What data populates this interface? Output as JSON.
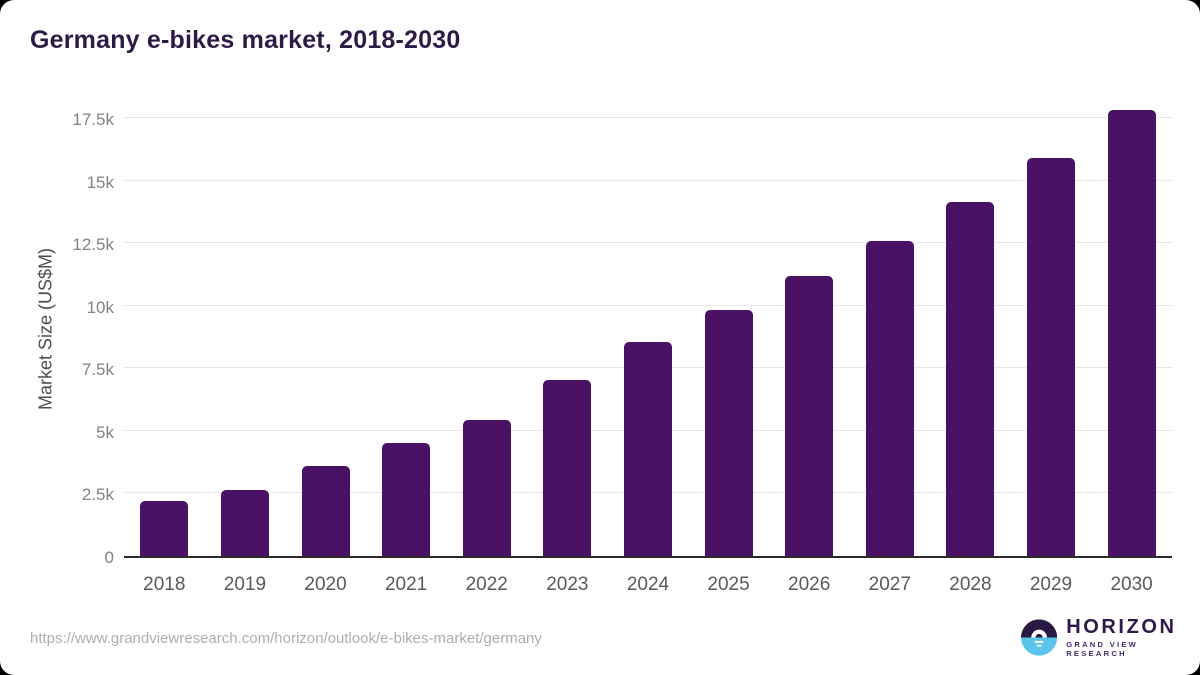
{
  "page": {
    "title": "Germany e-bikes market, 2018-2030",
    "source_url": "https://www.grandviewresearch.com/horizon/outlook/e-bikes-market/germany"
  },
  "logo": {
    "name": "HORIZON",
    "subtitle": "GRAND VIEW RESEARCH",
    "mark_top_color": "#2a1a43",
    "mark_bottom_color": "#5bc4ea"
  },
  "chart_data": {
    "type": "bar",
    "title": "Germany e-bikes market, 2018-2030",
    "xlabel": "",
    "ylabel": "Market Size (US$M)",
    "categories": [
      "2018",
      "2019",
      "2020",
      "2021",
      "2022",
      "2023",
      "2024",
      "2025",
      "2026",
      "2027",
      "2028",
      "2029",
      "2030"
    ],
    "values": [
      2200,
      2630,
      3600,
      4500,
      5440,
      7030,
      8550,
      9820,
      11190,
      12580,
      14140,
      15890,
      17820
    ],
    "ylim": [
      0,
      18320
    ],
    "yticks": [
      {
        "label": "0",
        "value": 0
      },
      {
        "label": "2.5k",
        "value": 2500
      },
      {
        "label": "5k",
        "value": 5000
      },
      {
        "label": "7.5k",
        "value": 7500
      },
      {
        "label": "10k",
        "value": 10000
      },
      {
        "label": "12.5k",
        "value": 12500
      },
      {
        "label": "15k",
        "value": 15000
      },
      {
        "label": "17.5k",
        "value": 17500
      }
    ],
    "grid": true,
    "legend": false,
    "bar_color": "#4a1164",
    "gridline_color": "#e7e7e7"
  }
}
